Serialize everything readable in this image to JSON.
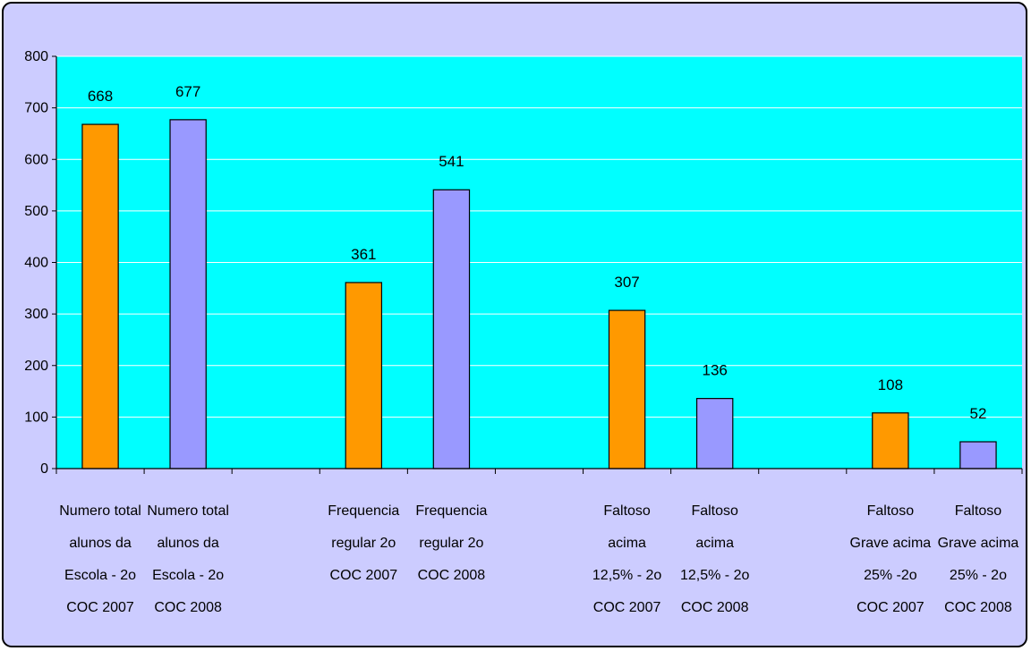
{
  "chart_data": {
    "type": "bar",
    "title": "",
    "xlabel": "",
    "ylabel": "",
    "ylim": [
      0,
      800
    ],
    "yticks": [
      0,
      100,
      200,
      300,
      400,
      500,
      600,
      700,
      800
    ],
    "grid": true,
    "legend": "none",
    "categories": [
      [
        "Numero total",
        "alunos da",
        "Escola - 2o",
        "COC 2007"
      ],
      [
        "Numero total",
        "alunos da",
        "Escola - 2o",
        "COC 2008"
      ],
      [],
      [
        "Frequencia",
        "regular 2o",
        "COC 2007"
      ],
      [
        "Frequencia",
        "regular 2o",
        "COC 2008"
      ],
      [],
      [
        "Faltoso",
        "acima",
        "12,5% - 2o",
        "COC 2007"
      ],
      [
        "Faltoso",
        "acima",
        "12,5% - 2o",
        "COC 2008"
      ],
      [],
      [
        "Faltoso",
        "Grave acima",
        "25% -2o",
        "COC 2007"
      ],
      [
        "Faltoso",
        "Grave acima",
        "25% - 2o",
        "COC 2008"
      ]
    ],
    "values": [
      668,
      677,
      null,
      361,
      541,
      null,
      307,
      136,
      null,
      108,
      52
    ],
    "bar_colors": [
      "#ff9900",
      "#9999ff",
      null,
      "#ff9900",
      "#9999ff",
      null,
      "#ff9900",
      "#9999ff",
      null,
      "#ff9900",
      "#9999ff"
    ],
    "plot_background": "#00ffff",
    "frame_background": "#ccccff",
    "gridline_color": "#ffffff"
  }
}
